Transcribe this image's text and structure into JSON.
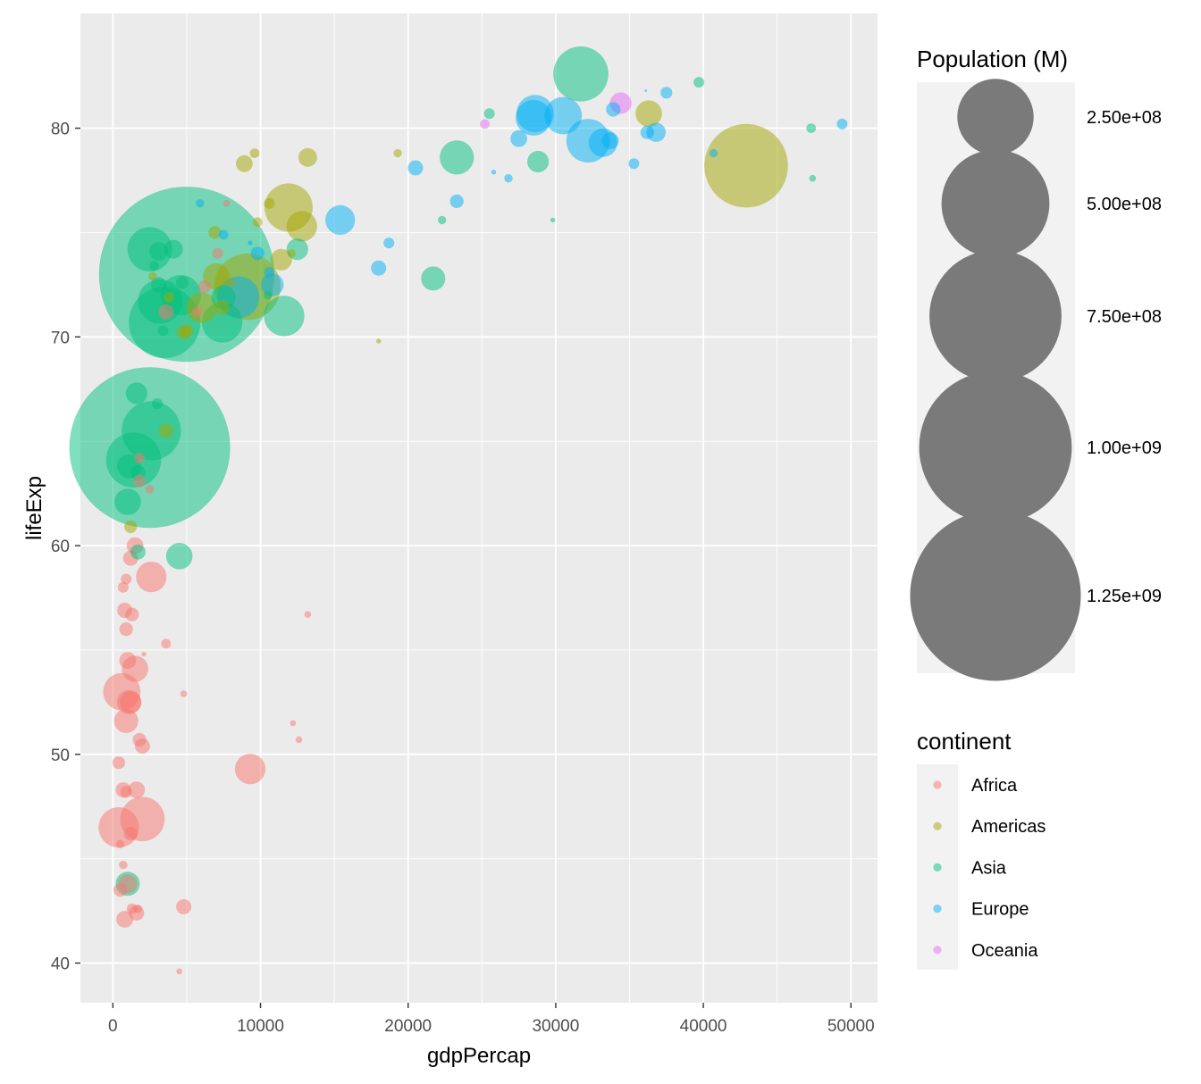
{
  "chart_data": {
    "type": "scatter",
    "title": "",
    "xlabel": "gdpPercap",
    "ylabel": "lifeExp",
    "xlim": [
      -2200,
      51800
    ],
    "ylim": [
      38.1,
      85.5
    ],
    "x_ticks": [
      0,
      10000,
      20000,
      30000,
      40000,
      50000
    ],
    "y_ticks": [
      40,
      50,
      60,
      70,
      80
    ],
    "grid": true,
    "background": "#ebebeb",
    "point_alpha": 0.5,
    "size_legend": {
      "title": "Population (M)",
      "breaks": [
        250000000,
        500000000,
        750000000,
        1000000000,
        1250000000
      ],
      "labels": [
        "2.50e+08",
        "5.00e+08",
        "7.50e+08",
        "1.00e+09",
        "1.25e+09"
      ],
      "color": "#7a7a7a",
      "position": "right"
    },
    "color_legend": {
      "title": "continent",
      "position": "right",
      "items": [
        {
          "label": "Africa",
          "color": "#F8766D"
        },
        {
          "label": "Americas",
          "color": "#A3A500"
        },
        {
          "label": "Asia",
          "color": "#00BF7D"
        },
        {
          "label": "Europe",
          "color": "#00B0F6"
        },
        {
          "label": "Oceania",
          "color": "#E76BF3"
        }
      ]
    },
    "series": [
      {
        "name": "Africa",
        "color": "#F8766D",
        "points": [
          [
            2000,
            46.9,
            85000000
          ],
          [
            400,
            46.5,
            70000000
          ],
          [
            600,
            53.0,
            60000000
          ],
          [
            2600,
            58.5,
            40000000
          ],
          [
            9300,
            49.3,
            40000000
          ],
          [
            1500,
            54.1,
            30000000
          ],
          [
            1100,
            52.5,
            25000000
          ],
          [
            1200,
            52.5,
            20000000
          ],
          [
            900,
            51.6,
            25000000
          ],
          [
            1000,
            54.5,
            12000000
          ],
          [
            1200,
            59.4,
            10000000
          ],
          [
            1500,
            60.0,
            12000000
          ],
          [
            1600,
            48.3,
            12000000
          ],
          [
            700,
            48.3,
            10000000
          ],
          [
            1600,
            42.4,
            10000000
          ],
          [
            800,
            42.1,
            12000000
          ],
          [
            4800,
            42.7,
            10000000
          ],
          [
            1000,
            43.8,
            15000000
          ],
          [
            1200,
            46.2,
            8000000
          ],
          [
            800,
            56.9,
            10000000
          ],
          [
            1800,
            50.7,
            8000000
          ],
          [
            2000,
            50.4,
            10000000
          ],
          [
            1300,
            56.7,
            8000000
          ],
          [
            900,
            56.0,
            8000000
          ],
          [
            400,
            49.6,
            7000000
          ],
          [
            900,
            48.2,
            6000000
          ],
          [
            500,
            43.5,
            8000000
          ],
          [
            700,
            58.0,
            5000000
          ],
          [
            900,
            58.4,
            5000000
          ],
          [
            1800,
            63.1,
            7000000
          ],
          [
            1800,
            64.2,
            5000000
          ],
          [
            1300,
            42.6,
            5000000
          ],
          [
            1700,
            42.6,
            3000000
          ],
          [
            500,
            45.7,
            3000000
          ],
          [
            700,
            44.7,
            3000000
          ],
          [
            3600,
            55.3,
            4000000
          ],
          [
            4800,
            52.9,
            2000000
          ],
          [
            12600,
            50.7,
            2000000
          ],
          [
            12200,
            51.5,
            1500000
          ],
          [
            13200,
            56.7,
            2000000
          ],
          [
            2100,
            54.8,
            1000000
          ],
          [
            4500,
            39.6,
            1500000
          ],
          [
            7700,
            76.4,
            2000000
          ],
          [
            5700,
            71.2,
            5000000
          ],
          [
            3600,
            71.2,
            10000000
          ],
          [
            6200,
            72.4,
            7000000
          ],
          [
            7100,
            74.0,
            5000000
          ],
          [
            2500,
            62.7,
            3000000
          ]
        ]
      },
      {
        "name": "Americas",
        "color": "#A3A500",
        "points": [
          [
            42900,
            78.2,
            300000000
          ],
          [
            9100,
            72.4,
            190000000
          ],
          [
            11900,
            76.2,
            100000000
          ],
          [
            6000,
            71.4,
            40000000
          ],
          [
            12800,
            75.3,
            40000000
          ],
          [
            7000,
            72.9,
            30000000
          ],
          [
            11400,
            73.7,
            20000000
          ],
          [
            36300,
            80.7,
            30000000
          ],
          [
            13200,
            78.6,
            15000000
          ],
          [
            8900,
            78.3,
            12000000
          ],
          [
            7400,
            71.4,
            10000000
          ],
          [
            3600,
            65.5,
            9000000
          ],
          [
            4800,
            70.2,
            8000000
          ],
          [
            5000,
            70.3,
            8000000
          ],
          [
            6900,
            75.0,
            7000000
          ],
          [
            10600,
            76.4,
            5000000
          ],
          [
            9800,
            75.5,
            4000000
          ],
          [
            12100,
            74.0,
            3000000
          ],
          [
            9600,
            78.8,
            4000000
          ],
          [
            19300,
            78.8,
            3000000
          ],
          [
            2700,
            72.9,
            3000000
          ],
          [
            1200,
            60.9,
            7000000
          ],
          [
            3800,
            71.9,
            5000000
          ],
          [
            18000,
            69.8,
            1000000
          ],
          [
            8000,
            72.6,
            3000000
          ]
        ]
      },
      {
        "name": "Asia",
        "color": "#00BF7D",
        "points": [
          [
            5000,
            73.0,
            1320000000
          ],
          [
            2500,
            64.7,
            1110000000
          ],
          [
            3500,
            70.7,
            220000000
          ],
          [
            2600,
            65.5,
            150000000
          ],
          [
            1400,
            64.1,
            130000000
          ],
          [
            31700,
            82.6,
            130000000
          ],
          [
            3200,
            71.7,
            85000000
          ],
          [
            2500,
            74.2,
            85000000
          ],
          [
            7400,
            70.7,
            70000000
          ],
          [
            11600,
            71.0,
            70000000
          ],
          [
            4600,
            72.0,
            70000000
          ],
          [
            1000,
            62.1,
            30000000
          ],
          [
            23300,
            78.6,
            50000000
          ],
          [
            4500,
            59.5,
            30000000
          ],
          [
            1100,
            63.8,
            25000000
          ],
          [
            7500,
            71.9,
            25000000
          ],
          [
            21700,
            72.8,
            25000000
          ],
          [
            28800,
            78.4,
            20000000
          ],
          [
            12500,
            74.2,
            20000000
          ],
          [
            1600,
            67.3,
            20000000
          ],
          [
            3100,
            74.1,
            15000000
          ],
          [
            4100,
            74.2,
            15000000
          ],
          [
            1000,
            43.8,
            25000000
          ],
          [
            1700,
            59.7,
            10000000
          ],
          [
            3100,
            72.5,
            10000000
          ],
          [
            4700,
            72.6,
            7000000
          ],
          [
            3000,
            66.8,
            5000000
          ],
          [
            3400,
            70.3,
            5000000
          ],
          [
            10500,
            72.0,
            3000000
          ],
          [
            39700,
            82.2,
            5000000
          ],
          [
            25500,
            80.7,
            5000000
          ],
          [
            47300,
            80.0,
            4000000
          ],
          [
            47400,
            77.6,
            2000000
          ],
          [
            29800,
            75.6,
            1000000
          ],
          [
            22300,
            75.6,
            3000000
          ],
          [
            2800,
            73.4,
            4000000
          ],
          [
            1700,
            63.5,
            10000000
          ]
        ]
      },
      {
        "name": "Europe",
        "color": "#00B0F6",
        "points": [
          [
            32200,
            79.4,
            82000000
          ],
          [
            28600,
            80.7,
            60000000
          ],
          [
            30500,
            80.6,
            60000000
          ],
          [
            28500,
            80.5,
            55000000
          ],
          [
            33200,
            79.3,
            35000000
          ],
          [
            15400,
            75.6,
            38000000
          ],
          [
            8500,
            71.9,
            75000000
          ],
          [
            10800,
            72.5,
            22000000
          ],
          [
            36800,
            79.8,
            16000000
          ],
          [
            33700,
            79.4,
            12000000
          ],
          [
            27500,
            79.5,
            12000000
          ],
          [
            26800,
            77.6,
            3000000
          ],
          [
            40700,
            78.8,
            3000000
          ],
          [
            37500,
            81.7,
            6000000
          ],
          [
            36200,
            79.8,
            8000000
          ],
          [
            33900,
            80.9,
            9000000
          ],
          [
            35300,
            78.3,
            5000000
          ],
          [
            49400,
            80.2,
            5000000
          ],
          [
            18000,
            73.3,
            10000000
          ],
          [
            20500,
            78.1,
            10000000
          ],
          [
            18700,
            74.5,
            5000000
          ],
          [
            23300,
            76.5,
            8000000
          ],
          [
            25800,
            77.9,
            1000000
          ],
          [
            36100,
            81.8,
            300000
          ],
          [
            9800,
            74.0,
            8000000
          ],
          [
            10600,
            73.1,
            5000000
          ],
          [
            7500,
            74.9,
            4000000
          ],
          [
            9300,
            74.5,
            1000000
          ],
          [
            5900,
            76.4,
            3000000
          ]
        ]
      },
      {
        "name": "Oceania",
        "color": "#E76BF3",
        "points": [
          [
            34400,
            81.2,
            20000000
          ],
          [
            25200,
            80.2,
            4000000
          ]
        ]
      }
    ]
  }
}
